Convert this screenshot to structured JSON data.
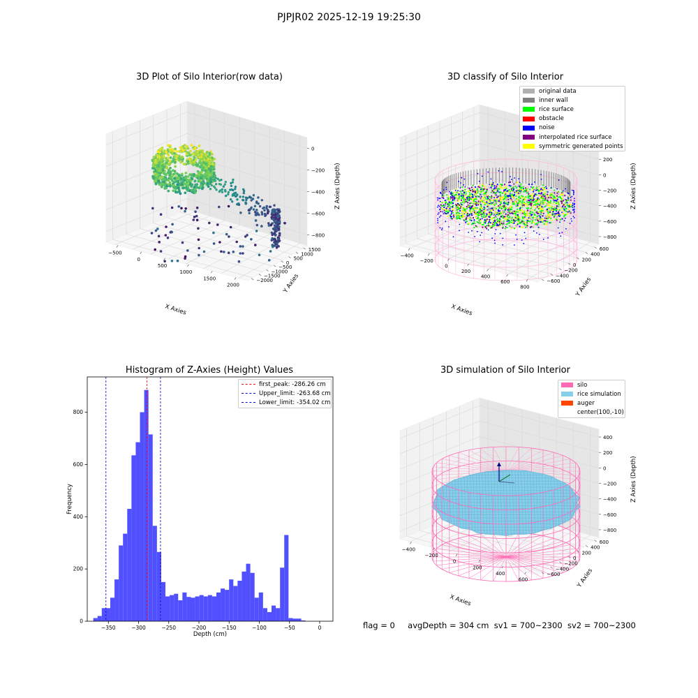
{
  "figure": {
    "suptitle": "PJPJR02 2025-12-19 19:25:30",
    "status": {
      "flag": "flag = 0",
      "avg_depth": "avgDepth = 304 cm",
      "sv1": "sv1 = 700~2300",
      "sv2": "sv2 = 700~2300"
    }
  },
  "chart_data": [
    {
      "type": "scatter",
      "title": "3D Plot of Silo Interior(row data)",
      "xlabel": "X Axies",
      "ylabel": "Y Axies",
      "zlabel": "Z Axies (Depth)",
      "x_ticks": [
        "−500",
        "0",
        "500",
        "1000",
        "1500",
        "2000"
      ],
      "y_ticks": [
        "−2000",
        "−1500",
        "−1000",
        "−500",
        "0",
        "500",
        "1000",
        "1500"
      ],
      "z_ticks": [
        "−800",
        "−600",
        "−400",
        "−200",
        "0"
      ],
      "xlim": [
        -600,
        2100
      ],
      "ylim": [
        -2000,
        1700
      ],
      "zlim": [
        -950,
        30
      ],
      "colormap": "viridis (by depth)",
      "grid": true
    },
    {
      "type": "scatter",
      "title": "3D classify of Silo Interior",
      "xlabel": "X Axies",
      "ylabel": "Y Axies",
      "zlabel": "Z Axies (Depth)",
      "x_ticks": [
        "−400",
        "−200",
        "0",
        "200",
        "400",
        "600",
        "800"
      ],
      "y_ticks": [
        "−600",
        "−400",
        "−200",
        "0",
        "200",
        "400",
        "600"
      ],
      "z_ticks": [
        "−800",
        "−600",
        "−400",
        "−200",
        "0",
        "200",
        "400"
      ],
      "legend_position": "upper right",
      "legend": [
        {
          "label": "original data",
          "color": "#b0b0b0"
        },
        {
          "label": "inner wall",
          "color": "#808080"
        },
        {
          "label": "rice surface",
          "color": "#00ff00"
        },
        {
          "label": "obstacle",
          "color": "#ff0000"
        },
        {
          "label": "noise",
          "color": "#0000ff"
        },
        {
          "label": "interpolated rice surface",
          "color": "#800080"
        },
        {
          "label": "symmetric generated points",
          "color": "#ffff00"
        }
      ],
      "grid": true
    },
    {
      "type": "bar",
      "title": "Histogram of Z-Axies (Height) Values",
      "xlabel": "Depth (cm)",
      "ylabel": "Frequency",
      "bar_color": "#5050ff",
      "bin_width": 7.03,
      "bin_start": -375,
      "values": [
        12,
        20,
        50,
        50,
        90,
        160,
        290,
        335,
        430,
        635,
        685,
        800,
        885,
        715,
        365,
        265,
        150,
        95,
        100,
        105,
        80,
        110,
        93,
        90,
        95,
        100,
        95,
        100,
        95,
        110,
        125,
        120,
        160,
        135,
        155,
        190,
        220,
        185,
        90,
        110,
        50,
        35,
        60,
        50,
        205,
        330,
        12,
        10,
        10,
        3
      ],
      "xlim": [
        -385,
        22
      ],
      "ylim": [
        0,
        935
      ],
      "x_ticks": [
        -350,
        -300,
        -250,
        -200,
        -150,
        -100,
        -50,
        0
      ],
      "x_tick_labels": [
        "−350",
        "−300",
        "−250",
        "−200",
        "−150",
        "−100",
        "−50",
        "0"
      ],
      "y_ticks": [
        0,
        200,
        400,
        600,
        800
      ],
      "vlines": [
        {
          "label": "first_peak: -286.26 cm",
          "x": -286.26,
          "color": "#ff0000"
        },
        {
          "label": "Upper_limit: -263.68 cm",
          "x": -263.68,
          "color": "#0000cc"
        },
        {
          "label": "Lower_limit: -354.02 cm",
          "x": -354.02,
          "color": "#0000cc"
        }
      ],
      "legend_position": "upper right"
    },
    {
      "type": "surface",
      "title": "3D simulation of Silo Interior",
      "xlabel": "X Axies",
      "ylabel": "Y Axies",
      "zlabel": "Z Axies (Depth)",
      "x_ticks": [
        "−400",
        "−200",
        "0",
        "200",
        "400",
        "600"
      ],
      "y_ticks": [
        "−600",
        "−400",
        "−200",
        "0",
        "200",
        "400",
        "600"
      ],
      "z_ticks": [
        "−800",
        "−600",
        "−400",
        "−200",
        "0",
        "200",
        "400"
      ],
      "legend_position": "upper right",
      "legend": [
        {
          "label": "silo",
          "color": "#ff69b4"
        },
        {
          "label": "rice simulation",
          "color": "#87ceeb"
        },
        {
          "label": "auger",
          "color": "#ff4500"
        },
        {
          "label": "center(100,-10)",
          "color": ""
        }
      ],
      "grid": true
    }
  ]
}
